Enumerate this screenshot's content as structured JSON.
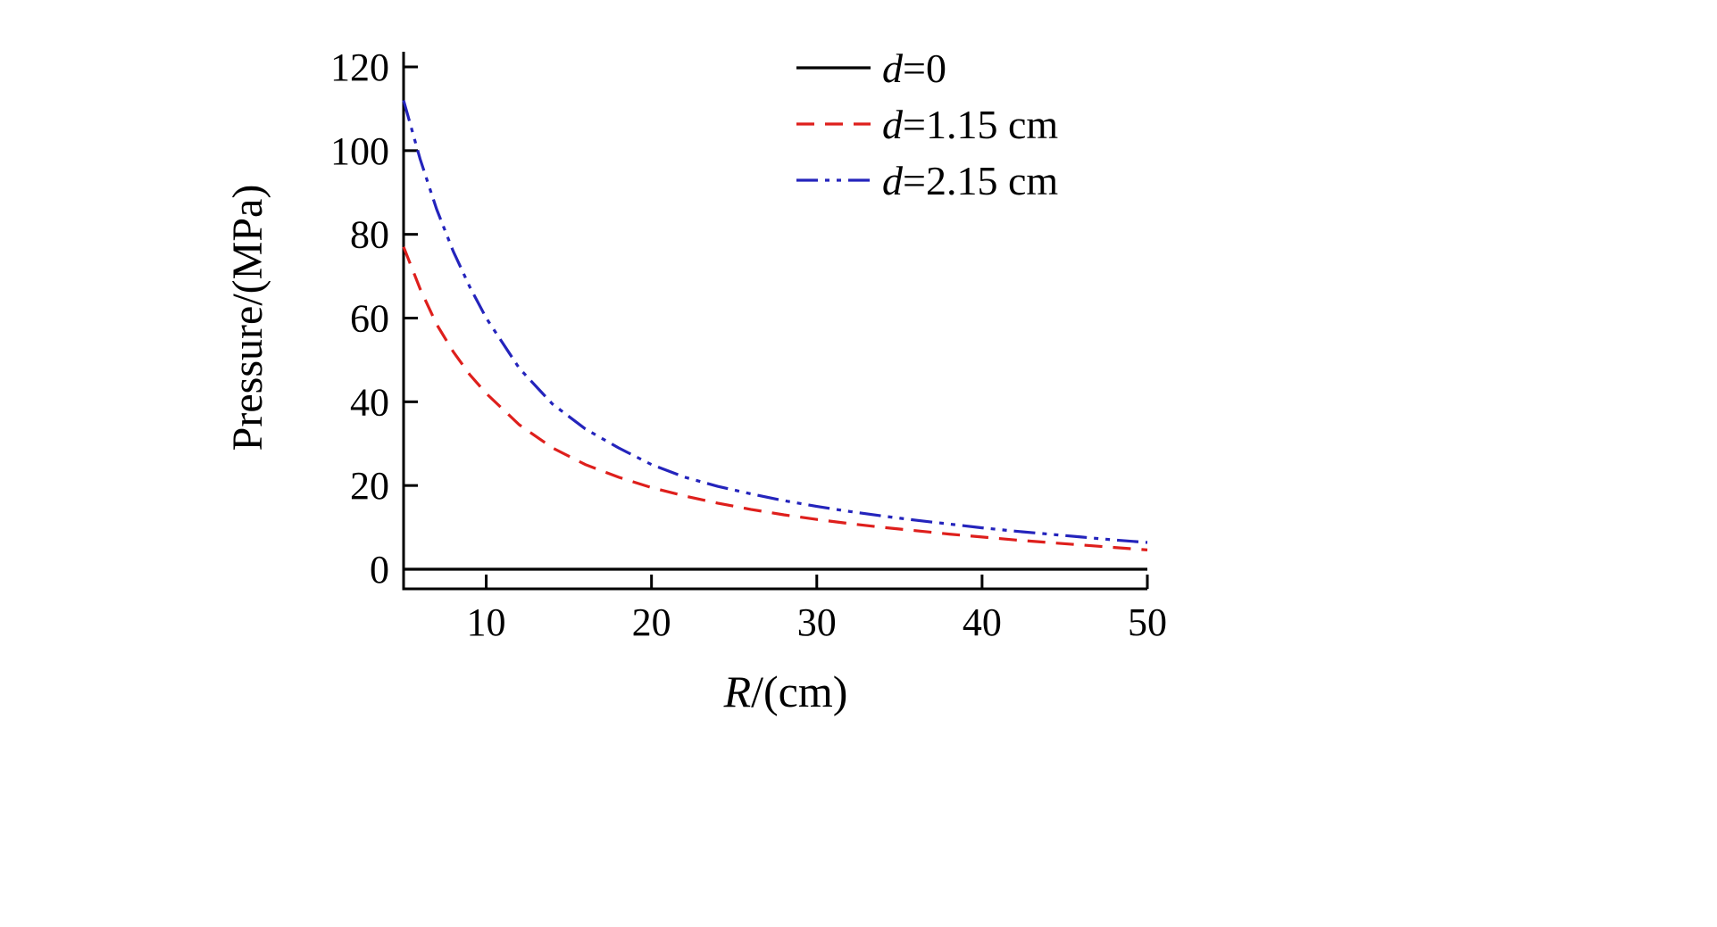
{
  "chart_data": {
    "type": "line",
    "title": "",
    "xlabel": "R/(cm)",
    "ylabel": "Pressure/(MPa)",
    "xlim": [
      5,
      50
    ],
    "ylim": [
      0,
      123
    ],
    "x_ticks": [
      10,
      20,
      30,
      40,
      50
    ],
    "y_ticks": [
      0,
      20,
      40,
      60,
      80,
      100,
      120
    ],
    "grid": false,
    "legend_position": "top-right",
    "x": [
      5,
      6,
      7,
      8,
      9,
      10,
      12,
      14,
      16,
      18,
      20,
      22,
      24,
      26,
      28,
      30,
      32,
      34,
      36,
      38,
      40,
      42,
      44,
      46,
      48,
      50
    ],
    "series": [
      {
        "name": "d=0",
        "color": "#000000",
        "style": "solid",
        "values": [
          0,
          0,
          0,
          0,
          0,
          0,
          0,
          0,
          0,
          0,
          0,
          0,
          0,
          0,
          0,
          0,
          0,
          0,
          0,
          0,
          0,
          0,
          0,
          0,
          0,
          0
        ]
      },
      {
        "name": "d=1.15 cm",
        "color": "#de1f1c",
        "style": "dashed",
        "values": [
          77,
          67,
          58.5,
          52,
          46.5,
          42,
          34.5,
          29,
          25,
          22,
          19.5,
          17.5,
          15.8,
          14.3,
          13,
          11.9,
          10.9,
          10,
          9.2,
          8.4,
          7.7,
          7,
          6.4,
          5.8,
          5.2,
          4.6
        ]
      },
      {
        "name": "d=2.15 cm",
        "color": "#2424bc",
        "style": "dashdot",
        "values": [
          112,
          98,
          86,
          76,
          67.5,
          60,
          48,
          39.5,
          33.5,
          29,
          25,
          22,
          19.8,
          18,
          16.4,
          15,
          13.8,
          12.7,
          11.7,
          10.8,
          9.9,
          9.1,
          8.4,
          7.7,
          7,
          6.4
        ]
      }
    ]
  }
}
